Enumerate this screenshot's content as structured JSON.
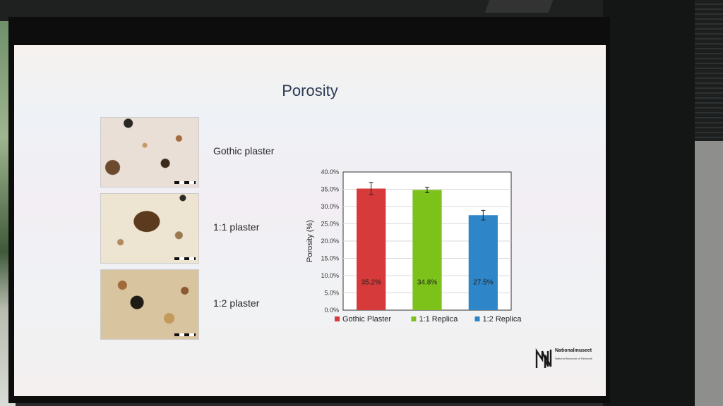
{
  "slide": {
    "title": "Porosity",
    "samples": [
      {
        "label": "Gothic plaster"
      },
      {
        "label": "1:1 plaster"
      },
      {
        "label": "1:2 plaster"
      }
    ],
    "logo": {
      "name": "Nationalmuseet",
      "subtitle": "National Museum of Denmark"
    }
  },
  "chart_data": {
    "type": "bar",
    "ylabel": "Porosity (%)",
    "ylim": [
      0,
      40
    ],
    "yticks": [
      "0.0%",
      "5.0%",
      "10.0%",
      "15.0%",
      "20.0%",
      "25.0%",
      "30.0%",
      "35.0%",
      "40.0%"
    ],
    "grid": true,
    "legend_position": "bottom",
    "categories": [
      "Gothic Plaster",
      "1:1 Replica",
      "1:2 Replica"
    ],
    "values": [
      35.2,
      34.8,
      27.5
    ],
    "errors": [
      1.8,
      0.8,
      1.4
    ],
    "data_labels": [
      "35.2%",
      "34.8%",
      "27.5%"
    ],
    "colors": [
      "#d63a3a",
      "#7cc21a",
      "#2e86c8"
    ]
  }
}
